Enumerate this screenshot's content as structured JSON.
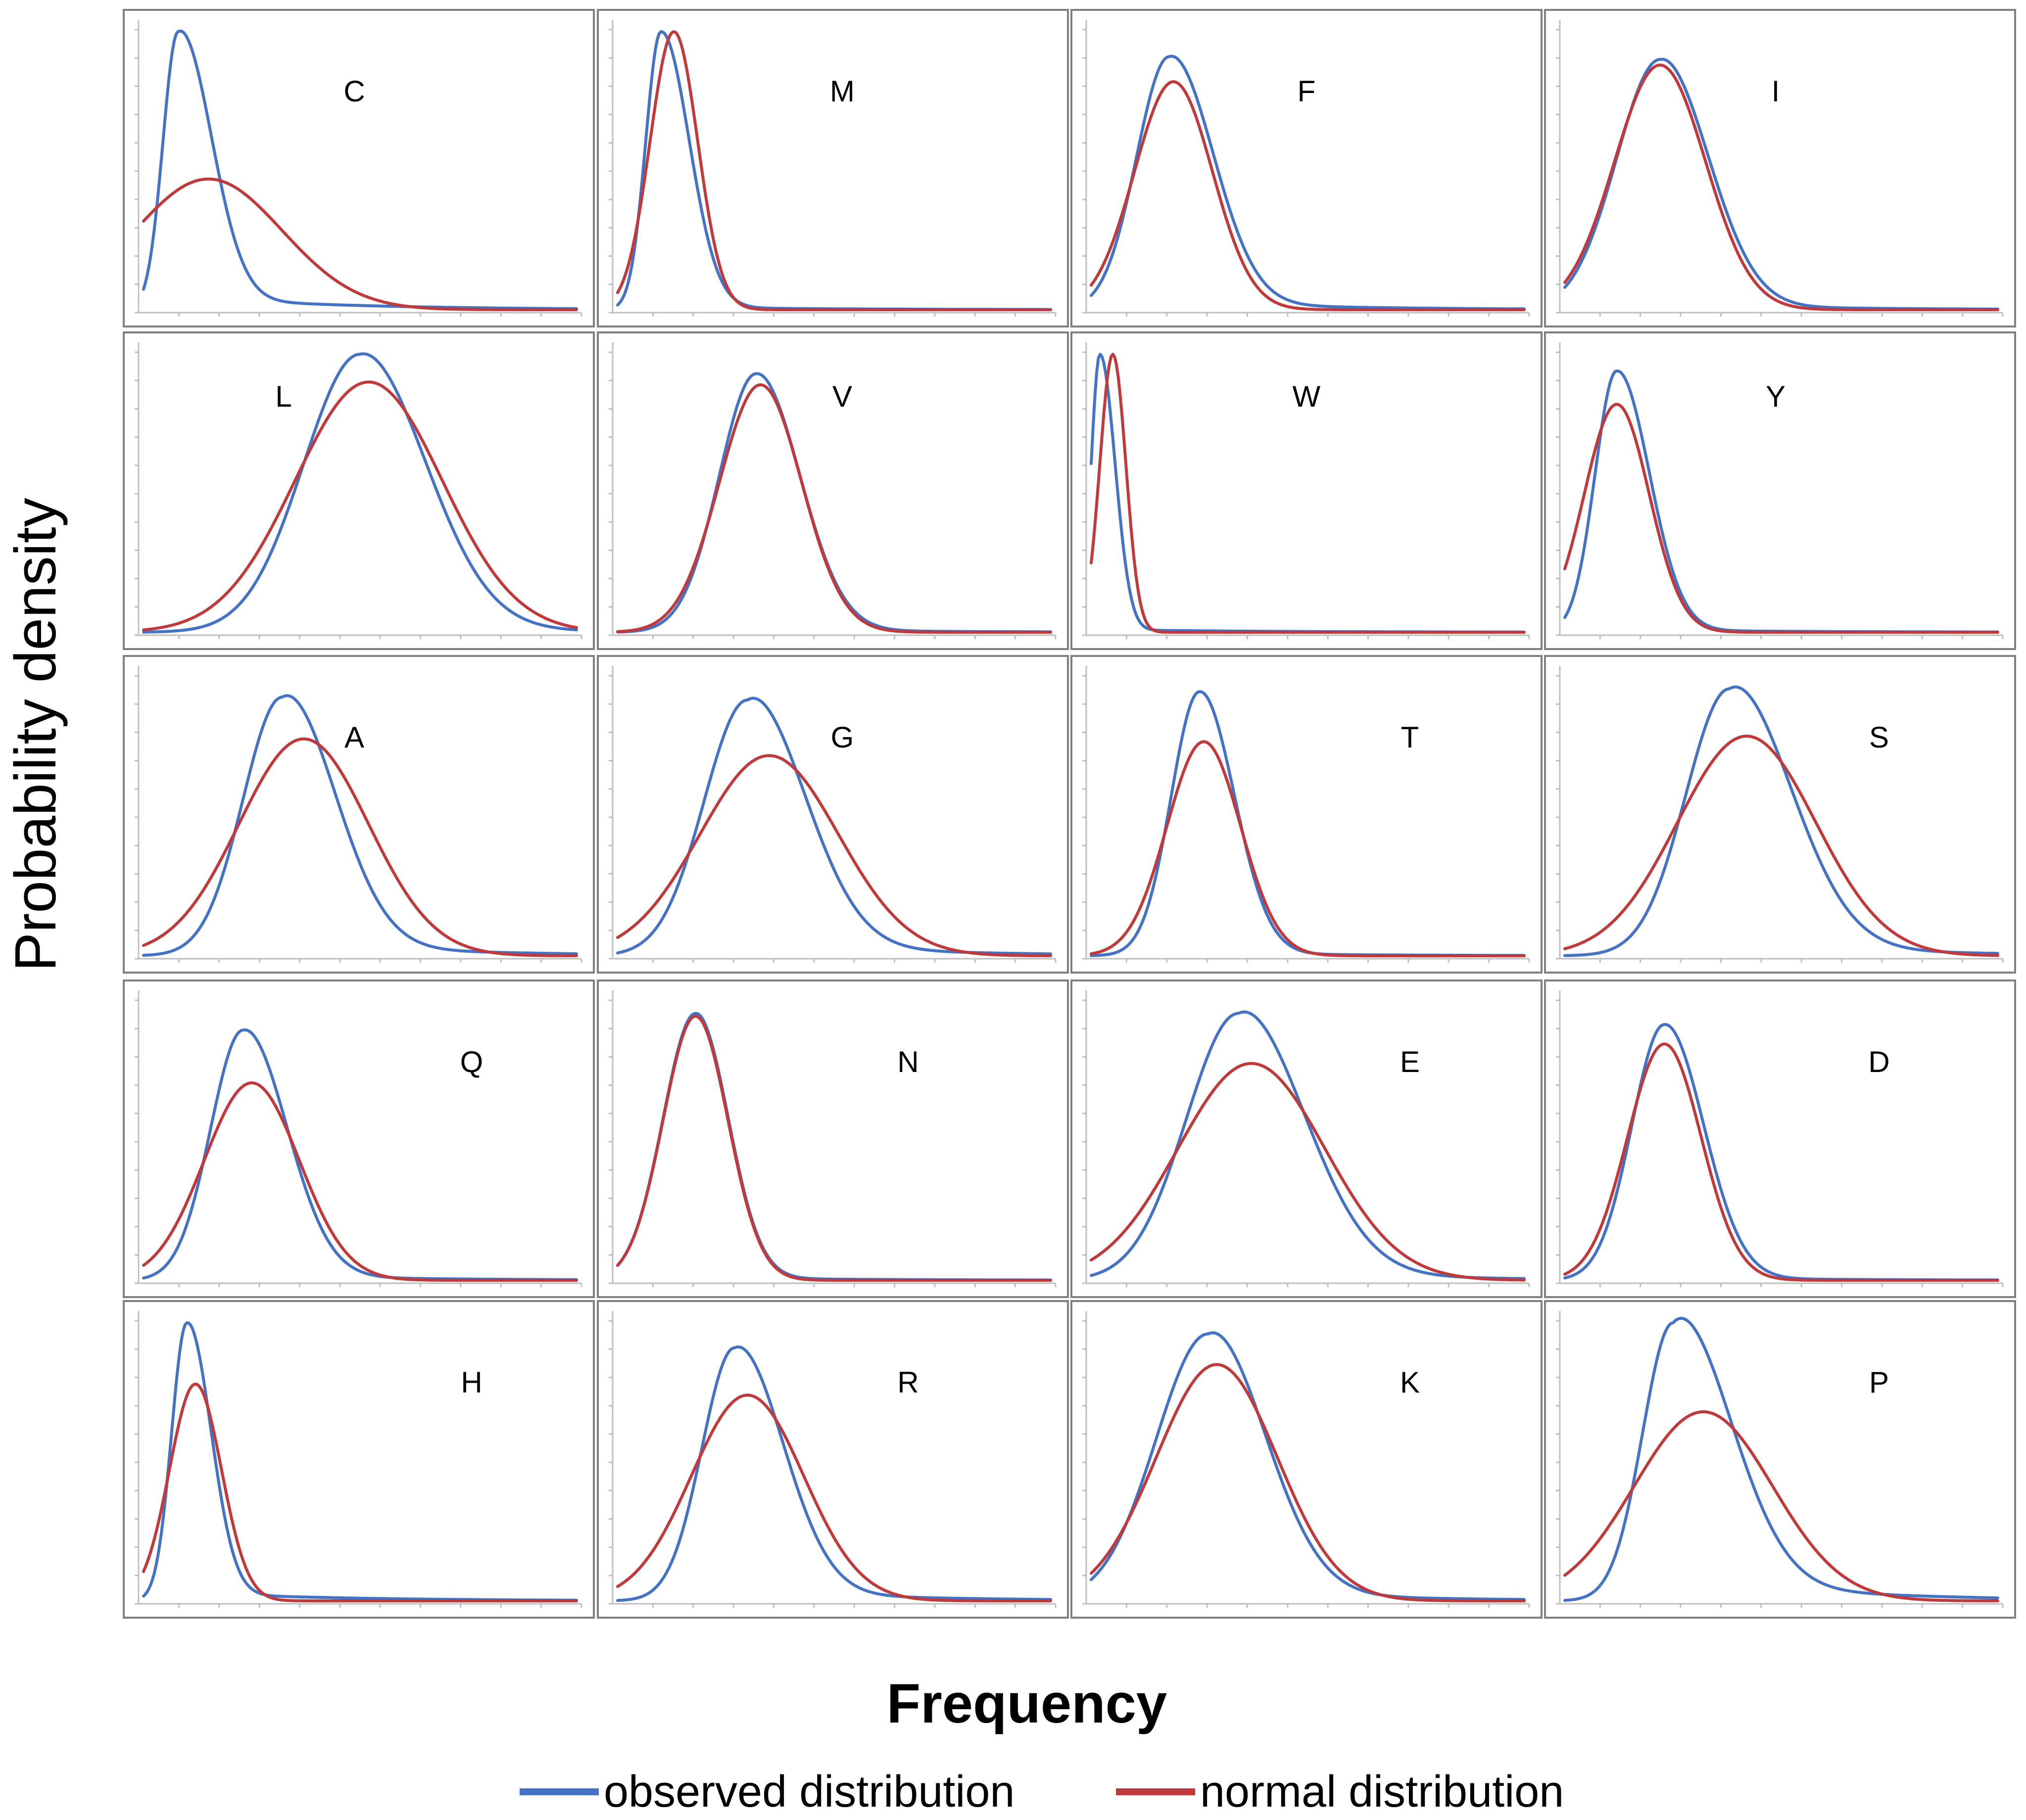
{
  "figure": {
    "ylabel": "Probability density",
    "xlabel": "Frequency"
  },
  "legend": {
    "observed_label": "observed distribution",
    "normal_label": "normal distribution",
    "observed_color": "#4472c4",
    "normal_color": "#c0393b"
  },
  "chart_data": {
    "type": "line",
    "grid": false,
    "legend_position": "bottom-center",
    "series_names": [
      "observed distribution",
      "normal distribution"
    ],
    "panels": [
      {
        "label": "C",
        "observed": {
          "mode": 0.08,
          "height": 1.0,
          "sl": 0.035,
          "sr": 0.075,
          "tail": 0.05
        },
        "normal": {
          "mode": 0.15,
          "height": 0.47,
          "s": 0.17
        },
        "lead": 0.47
      },
      {
        "label": "M",
        "observed": {
          "mode": 0.1,
          "height": 1.0,
          "sl": 0.035,
          "sr": 0.065,
          "tail": 0.01
        },
        "normal": {
          "mode": 0.13,
          "height": 1.0,
          "s": 0.055
        },
        "lead": 0.25
      },
      {
        "label": "F",
        "observed": {
          "mode": 0.18,
          "height": 0.91,
          "sl": 0.075,
          "sr": 0.1,
          "tail": 0.03
        },
        "normal": {
          "mode": 0.19,
          "height": 0.82,
          "s": 0.09
        },
        "lead": 0.13
      },
      {
        "label": "I",
        "observed": {
          "mode": 0.22,
          "height": 0.9,
          "sl": 0.1,
          "sr": 0.11,
          "tail": 0.02
        },
        "normal": {
          "mode": 0.22,
          "height": 0.88,
          "s": 0.105
        },
        "lead": 0.15
      },
      {
        "label": "L",
        "observed": {
          "mode": 0.5,
          "height": 1.0,
          "sl": 0.13,
          "sr": 0.15,
          "tail": 0.02
        },
        "normal": {
          "mode": 0.52,
          "height": 0.9,
          "s": 0.17
        },
        "lead": 0.02
      },
      {
        "label": "V",
        "observed": {
          "mode": 0.32,
          "height": 0.93,
          "sl": 0.085,
          "sr": 0.1,
          "tail": 0.01
        },
        "normal": {
          "mode": 0.33,
          "height": 0.89,
          "s": 0.095
        },
        "lead": 0.02
      },
      {
        "label": "W",
        "observed": {
          "mode": 0.02,
          "height": 1.0,
          "sl": 0.02,
          "sr": 0.035,
          "tail": 0.01
        },
        "normal": {
          "mode": 0.05,
          "height": 1.0,
          "s": 0.03
        },
        "lead": 0.7
      },
      {
        "label": "Y",
        "observed": {
          "mode": 0.12,
          "height": 0.94,
          "sl": 0.05,
          "sr": 0.075,
          "tail": 0.01
        },
        "normal": {
          "mode": 0.12,
          "height": 0.82,
          "s": 0.075
        },
        "lead": 0.25
      },
      {
        "label": "A",
        "observed": {
          "mode": 0.32,
          "height": 0.93,
          "sl": 0.09,
          "sr": 0.12,
          "tail": 0.05
        },
        "normal": {
          "mode": 0.37,
          "height": 0.78,
          "s": 0.15
        },
        "lead": 0.02
      },
      {
        "label": "G",
        "observed": {
          "mode": 0.3,
          "height": 0.92,
          "sl": 0.1,
          "sr": 0.13,
          "tail": 0.05
        },
        "normal": {
          "mode": 0.35,
          "height": 0.72,
          "s": 0.16
        },
        "lead": 0.02
      },
      {
        "label": "T",
        "observed": {
          "mode": 0.25,
          "height": 0.95,
          "sl": 0.065,
          "sr": 0.08,
          "tail": 0.01
        },
        "normal": {
          "mode": 0.26,
          "height": 0.77,
          "s": 0.085
        },
        "lead": 0.02
      },
      {
        "label": "S",
        "observed": {
          "mode": 0.38,
          "height": 0.96,
          "sl": 0.1,
          "sr": 0.14,
          "tail": 0.05
        },
        "normal": {
          "mode": 0.42,
          "height": 0.79,
          "s": 0.16
        },
        "lead": 0.02
      },
      {
        "label": "Q",
        "observed": {
          "mode": 0.23,
          "height": 0.9,
          "sl": 0.075,
          "sr": 0.1,
          "tail": 0.02
        },
        "normal": {
          "mode": 0.25,
          "height": 0.71,
          "s": 0.11
        },
        "lead": 0.05
      },
      {
        "label": "N",
        "observed": {
          "mode": 0.18,
          "height": 0.96,
          "sl": 0.075,
          "sr": 0.075,
          "tail": 0.01
        },
        "normal": {
          "mode": 0.18,
          "height": 0.95,
          "s": 0.075
        },
        "lead": 0.15
      },
      {
        "label": "E",
        "observed": {
          "mode": 0.34,
          "height": 0.96,
          "sl": 0.12,
          "sr": 0.15,
          "tail": 0.04
        },
        "normal": {
          "mode": 0.37,
          "height": 0.78,
          "s": 0.17
        },
        "lead": 0.05
      },
      {
        "label": "D",
        "observed": {
          "mode": 0.23,
          "height": 0.92,
          "sl": 0.075,
          "sr": 0.09,
          "tail": 0.01
        },
        "normal": {
          "mode": 0.23,
          "height": 0.85,
          "s": 0.085
        },
        "lead": 0.08
      },
      {
        "label": "H",
        "observed": {
          "mode": 0.1,
          "height": 1.0,
          "sl": 0.035,
          "sr": 0.055,
          "tail": 0.03
        },
        "normal": {
          "mode": 0.12,
          "height": 0.78,
          "s": 0.06
        },
        "lead": 0.25
      },
      {
        "label": "R",
        "observed": {
          "mode": 0.27,
          "height": 0.91,
          "sl": 0.075,
          "sr": 0.11,
          "tail": 0.04
        },
        "normal": {
          "mode": 0.3,
          "height": 0.74,
          "s": 0.13
        },
        "lead": 0.02
      },
      {
        "label": "K",
        "observed": {
          "mode": 0.27,
          "height": 0.96,
          "sl": 0.12,
          "sr": 0.13,
          "tail": 0.04
        },
        "normal": {
          "mode": 0.29,
          "height": 0.85,
          "s": 0.14
        },
        "lead": 0.1
      },
      {
        "label": "P",
        "observed": {
          "mode": 0.25,
          "height": 1.0,
          "sl": 0.07,
          "sr": 0.13,
          "tail": 0.09
        },
        "normal": {
          "mode": 0.32,
          "height": 0.68,
          "s": 0.16
        },
        "lead": 0.1
      }
    ]
  }
}
